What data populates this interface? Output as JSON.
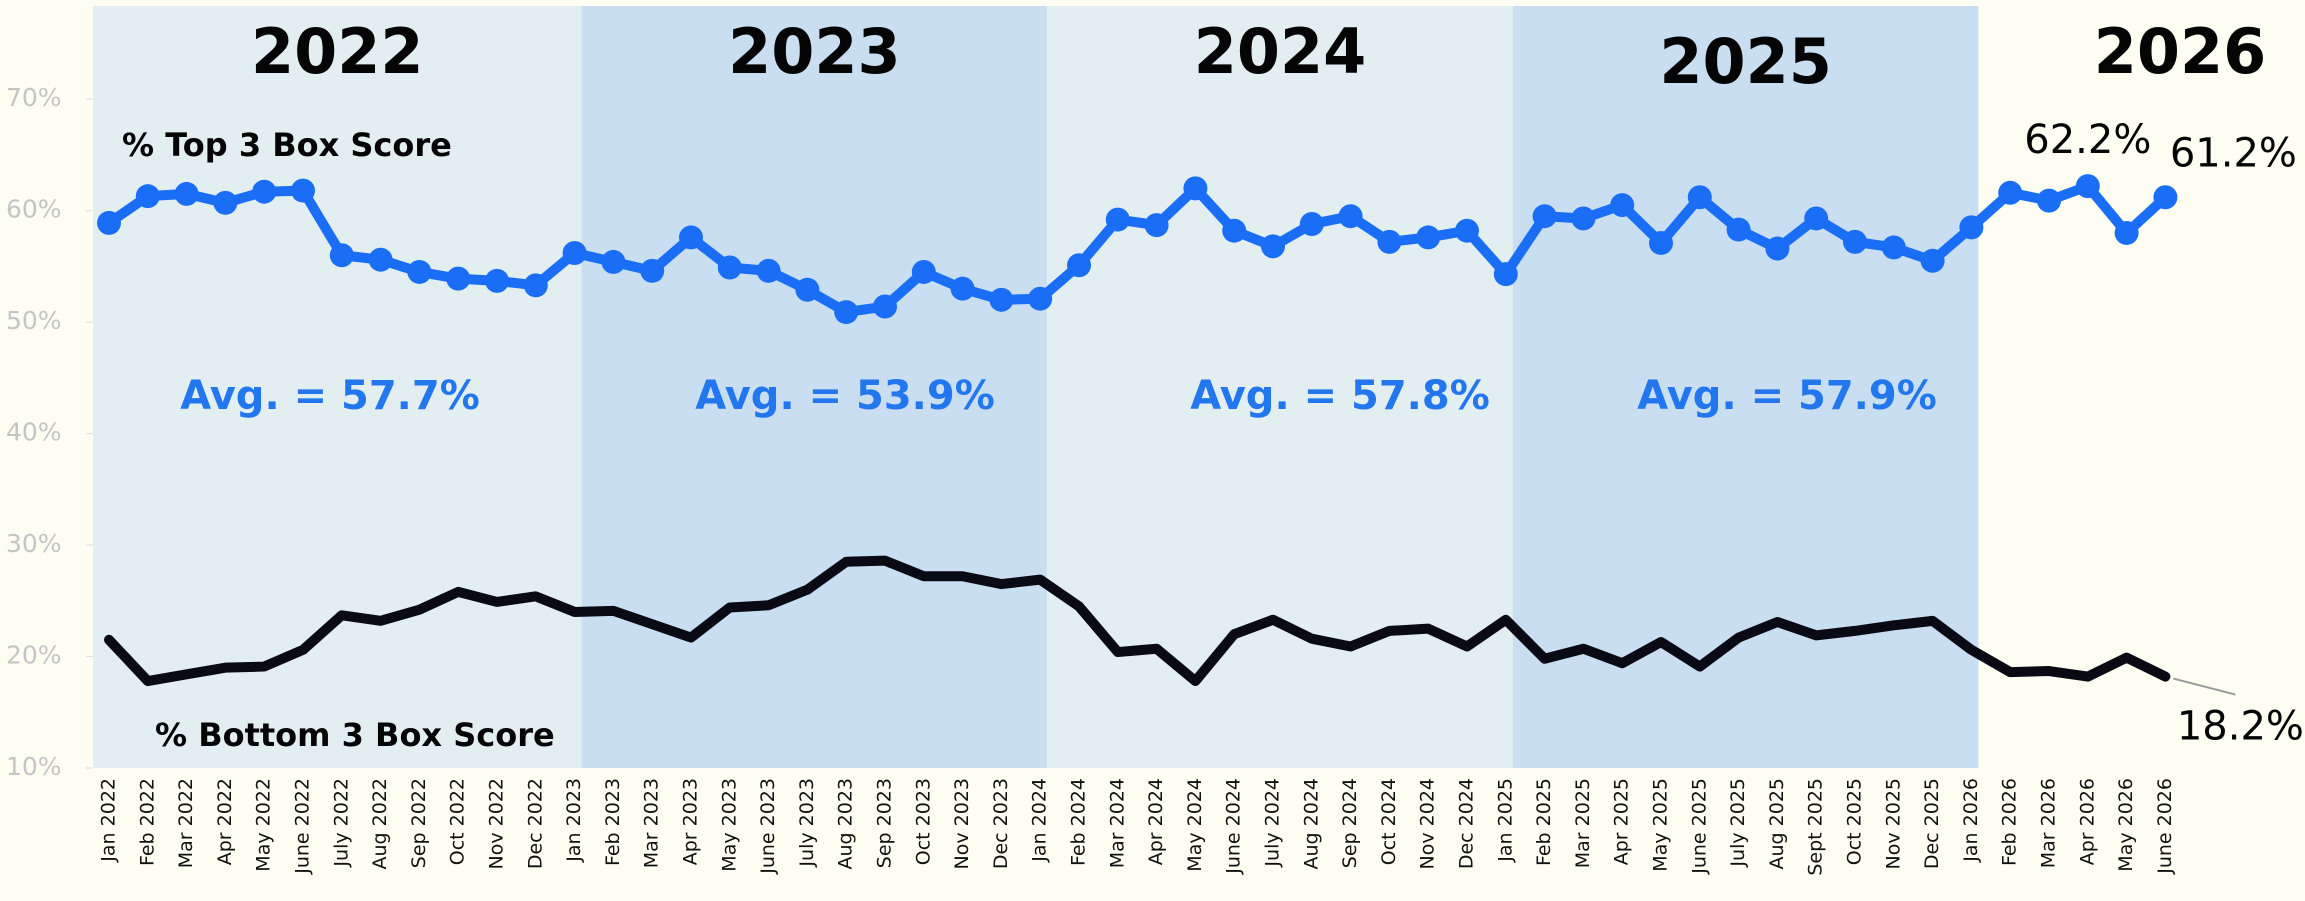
{
  "chart_data": {
    "type": "line",
    "years": [
      "2022",
      "2023",
      "2024",
      "2025",
      "2026"
    ],
    "categories": [
      "Jan 2022",
      "Feb 2022",
      "Mar 2022",
      "Apr 2022",
      "May 2022",
      "June 2022",
      "July 2022",
      "Aug 2022",
      "Sep 2022",
      "Oct 2022",
      "Nov 2022",
      "Dec 2022",
      "Jan 2023",
      "Feb 2023",
      "Mar 2023",
      "Apr 2023",
      "May 2023",
      "June 2023",
      "July 2023",
      "Aug 2023",
      "Sep 2023",
      "Oct 2023",
      "Nov 2023",
      "Dec 2023",
      "Jan 2024",
      "Feb 2024",
      "Mar 2024",
      "Apr 2024",
      "May 2024",
      "June 2024",
      "July 2024",
      "Aug 2024",
      "Sep 2024",
      "Oct 2024",
      "Nov 2024",
      "Dec 2024",
      "Jan 2025",
      "Feb 2025",
      "Mar 2025",
      "Apr 2025",
      "May 2025",
      "June 2025",
      "July 2025",
      "Aug 2025",
      "Sept 2025",
      "Oct 2025",
      "Nov 2025",
      "Dec 2025",
      "Jan 2026",
      "Feb 2026",
      "Mar 2026",
      "Apr 2026",
      "May 2026",
      "June 2026"
    ],
    "series": [
      {
        "name": "% Top 3 Box Score",
        "color": "#1a6ef5",
        "markers": true,
        "values": [
          58.9,
          61.3,
          61.5,
          60.7,
          61.7,
          61.8,
          56.0,
          55.6,
          54.5,
          53.9,
          53.7,
          53.3,
          56.2,
          55.4,
          54.6,
          57.6,
          54.9,
          54.6,
          52.9,
          50.9,
          51.4,
          54.5,
          53.0,
          52.0,
          52.1,
          55.1,
          59.2,
          58.7,
          62.0,
          58.2,
          56.8,
          58.8,
          59.5,
          57.2,
          57.6,
          58.2,
          54.3,
          59.5,
          59.3,
          60.5,
          57.1,
          61.2,
          58.3,
          56.6,
          59.3,
          57.2,
          56.7,
          55.5,
          58.5,
          61.6,
          60.9,
          62.2,
          58.0,
          61.2
        ],
        "value_labels": [
          null,
          null,
          null,
          null,
          null,
          null,
          null,
          null,
          null,
          null,
          null,
          null,
          null,
          null,
          null,
          null,
          null,
          null,
          null,
          null,
          null,
          null,
          null,
          null,
          null,
          null,
          null,
          null,
          null,
          null,
          null,
          null,
          null,
          null,
          null,
          null,
          null,
          null,
          null,
          null,
          null,
          null,
          null,
          null,
          null,
          null,
          null,
          null,
          null,
          null,
          null,
          "62.2%",
          null,
          "61.2%"
        ]
      },
      {
        "name": "% Bottom 3 Box Score",
        "color": "#0a0a14",
        "markers": false,
        "values": [
          21.5,
          17.8,
          18.4,
          19.0,
          19.1,
          20.6,
          23.7,
          23.2,
          24.2,
          25.8,
          24.9,
          25.4,
          24.0,
          24.1,
          22.9,
          21.7,
          24.4,
          24.6,
          26.0,
          28.5,
          28.6,
          27.2,
          27.2,
          26.5,
          26.9,
          24.5,
          20.4,
          20.7,
          17.8,
          22.0,
          23.3,
          21.6,
          20.9,
          22.3,
          22.5,
          20.9,
          23.3,
          19.8,
          20.7,
          19.4,
          21.3,
          19.1,
          21.7,
          23.1,
          21.9,
          22.3,
          22.8,
          23.2,
          20.6,
          18.6,
          18.7,
          18.2,
          19.9,
          18.2
        ],
        "value_labels": [
          null,
          null,
          null,
          null,
          null,
          null,
          null,
          null,
          null,
          null,
          null,
          null,
          null,
          null,
          null,
          null,
          null,
          null,
          null,
          null,
          null,
          null,
          null,
          null,
          null,
          null,
          null,
          null,
          null,
          null,
          null,
          null,
          null,
          null,
          null,
          null,
          null,
          null,
          null,
          null,
          null,
          null,
          null,
          null,
          null,
          null,
          null,
          null,
          null,
          null,
          null,
          null,
          null,
          "18.2%"
        ]
      }
    ],
    "annotations": [
      "Avg. = 57.7%",
      "Avg. = 53.9%",
      "Avg. = 57.8%",
      "Avg. = 57.9%"
    ],
    "ylim": [
      10,
      78
    ],
    "yticks": [
      {
        "value": 10,
        "label": "10%"
      },
      {
        "value": 20,
        "label": "20%"
      },
      {
        "value": 30,
        "label": "30%"
      },
      {
        "value": 40,
        "label": "40%"
      },
      {
        "value": 50,
        "label": "50%"
      },
      {
        "value": 60,
        "label": "60%"
      },
      {
        "value": 70,
        "label": "70%"
      }
    ],
    "grid": false
  }
}
